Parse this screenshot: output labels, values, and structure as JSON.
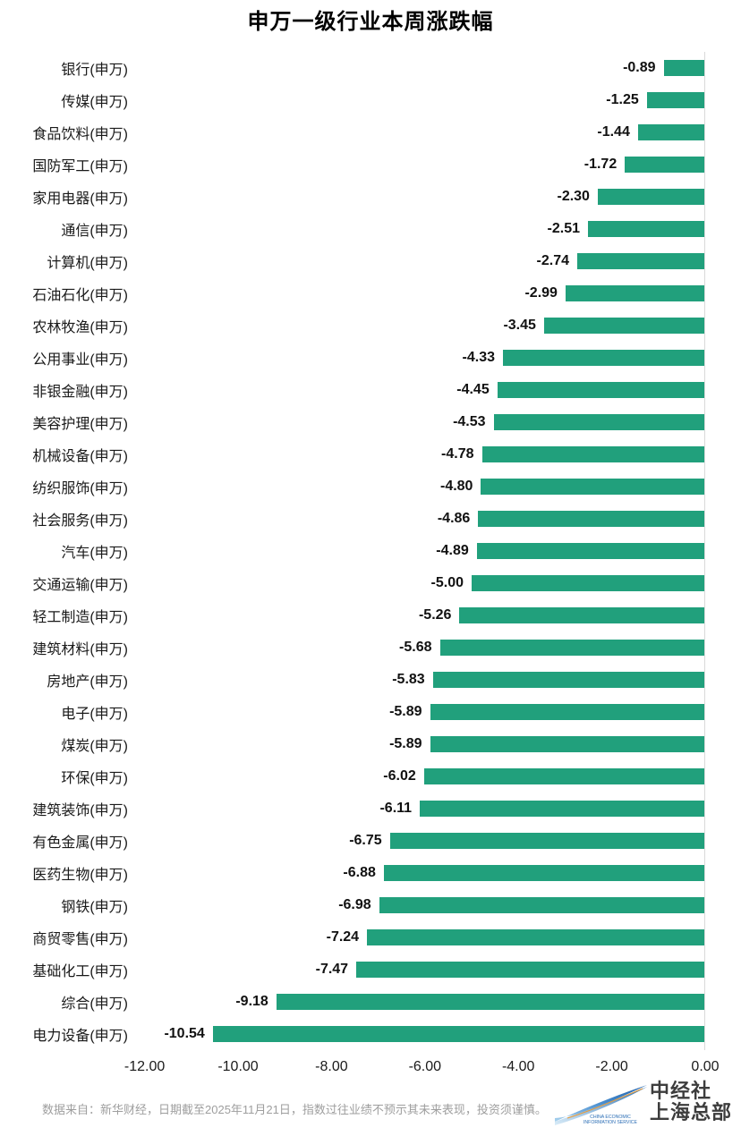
{
  "title": "申万一级行业本周涨跌幅",
  "chart_data": {
    "type": "bar",
    "orientation": "horizontal",
    "title": "申万一级行业本周涨跌幅",
    "categories": [
      "银行(申万)",
      "传媒(申万)",
      "食品饮料(申万)",
      "国防军工(申万)",
      "家用电器(申万)",
      "通信(申万)",
      "计算机(申万)",
      "石油石化(申万)",
      "农林牧渔(申万)",
      "公用事业(申万)",
      "非银金融(申万)",
      "美容护理(申万)",
      "机械设备(申万)",
      "纺织服饰(申万)",
      "社会服务(申万)",
      "汽车(申万)",
      "交通运输(申万)",
      "轻工制造(申万)",
      "建筑材料(申万)",
      "房地产(申万)",
      "电子(申万)",
      "煤炭(申万)",
      "环保(申万)",
      "建筑装饰(申万)",
      "有色金属(申万)",
      "医药生物(申万)",
      "钢铁(申万)",
      "商贸零售(申万)",
      "基础化工(申万)",
      "综合(申万)",
      "电力设备(申万)"
    ],
    "values": [
      -0.89,
      -1.25,
      -1.44,
      -1.72,
      -2.3,
      -2.51,
      -2.74,
      -2.99,
      -3.45,
      -4.33,
      -4.45,
      -4.53,
      -4.78,
      -4.8,
      -4.86,
      -4.89,
      -5.0,
      -5.26,
      -5.68,
      -5.83,
      -5.89,
      -5.89,
      -6.02,
      -6.11,
      -6.75,
      -6.88,
      -6.98,
      -7.24,
      -7.47,
      -9.18,
      -10.54
    ],
    "value_labels": [
      "-0.89",
      "-1.25",
      "-1.44",
      "-1.72",
      "-2.30",
      "-2.51",
      "-2.74",
      "-2.99",
      "-3.45",
      "-4.33",
      "-4.45",
      "-4.53",
      "-4.78",
      "-4.80",
      "-4.86",
      "-4.89",
      "-5.00",
      "-5.26",
      "-5.68",
      "-5.83",
      "-5.89",
      "-5.89",
      "-6.02",
      "-6.11",
      "-6.75",
      "-6.88",
      "-6.98",
      "-7.24",
      "-7.47",
      "-9.18",
      "-10.54"
    ],
    "x_ticks": [
      "-12.00",
      "-10.00",
      "-8.00",
      "-6.00",
      "-4.00",
      "-2.00",
      "0.00"
    ],
    "x_tick_values": [
      -12,
      -10,
      -8,
      -6,
      -4,
      -2,
      0
    ],
    "xlim": [
      -12,
      0
    ],
    "grid": false,
    "legend": false,
    "bar_color": "#21a07c",
    "zero_axis_line_color": "#d9d9d9"
  },
  "footer": {
    "disclaimer": "数据来自：新华财经，日期截至2025年11月21日，指数过往业绩不预示其未来表现，投资须谨慎。",
    "logo": {
      "subtext_line1": "CHINA ECONOMIC",
      "subtext_line2": "INFORMATION SERVICE",
      "org_line1": "中经社",
      "org_line2": "上海总部"
    }
  },
  "colors": {
    "bar": "#21a07c",
    "axis_line": "#d9d9d9",
    "title_text": "#000000",
    "label_text": "#1a1a1a",
    "footer_text": "#9e9e9e",
    "logo_blue_dark": "#1f5fa8",
    "logo_blue_light": "#8fc3e8",
    "logo_accent_orange": "#e59b3c",
    "logo_org_text": "#3d3d3d"
  }
}
